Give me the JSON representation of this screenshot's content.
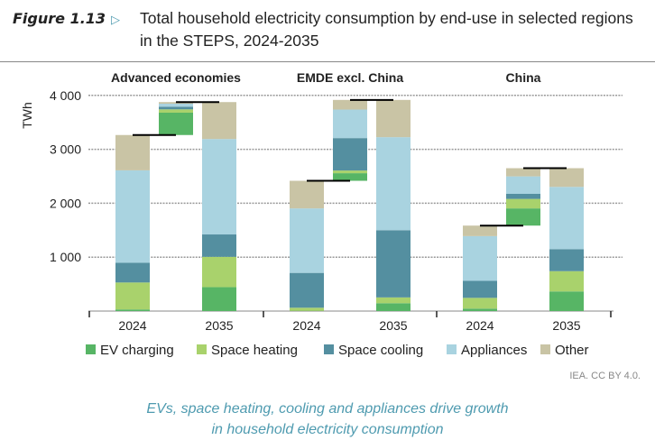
{
  "header": {
    "figure_label": "Figure 1.13",
    "title": "Total household electricity consumption by end-use in selected regions in the STEPS, 2024-2035"
  },
  "source": "IEA. CC BY 4.0.",
  "caption": [
    "EVs, space heating, cooling and appliances drive growth",
    "in household electricity consumption"
  ],
  "chart_data": {
    "type": "bar",
    "stacked": true,
    "waterfall_change_bars": true,
    "ylabel": "TWh",
    "ylim": [
      0,
      4000
    ],
    "yticks": [
      "1 000",
      "2 000",
      "3 000",
      "4 000"
    ],
    "grid": "horizontal dotted",
    "legend_placement": "bottom",
    "colors": {
      "EV charging": "#57b565",
      "Space heating": "#a9d26c",
      "Space cooling": "#548fa0",
      "Appliances": "#a9d3e0",
      "Other": "#c9c4a5"
    },
    "series_names": [
      "EV charging",
      "Space heating",
      "Space cooling",
      "Appliances",
      "Other"
    ],
    "groups": [
      {
        "name": "Advanced economies",
        "categories": [
          "2024",
          "2035"
        ],
        "values": {
          "2024": [
            30,
            500,
            365,
            1715,
            655
          ],
          "2035": [
            444,
            562,
            415,
            1770,
            685
          ]
        }
      },
      {
        "name": "EMDE excl. China",
        "categories": [
          "2024",
          "2035"
        ],
        "values": {
          "2024": [
            5,
            57,
            646,
            1196,
            512
          ],
          "2035": [
            146,
            107,
            1247,
            1725,
            691
          ]
        }
      },
      {
        "name": "China",
        "categories": [
          "2024",
          "2035"
        ],
        "values": {
          "2024": [
            45,
            200,
            315,
            830,
            195
          ],
          "2035": [
            364,
            376,
            409,
            1154,
            347
          ]
        }
      }
    ]
  }
}
